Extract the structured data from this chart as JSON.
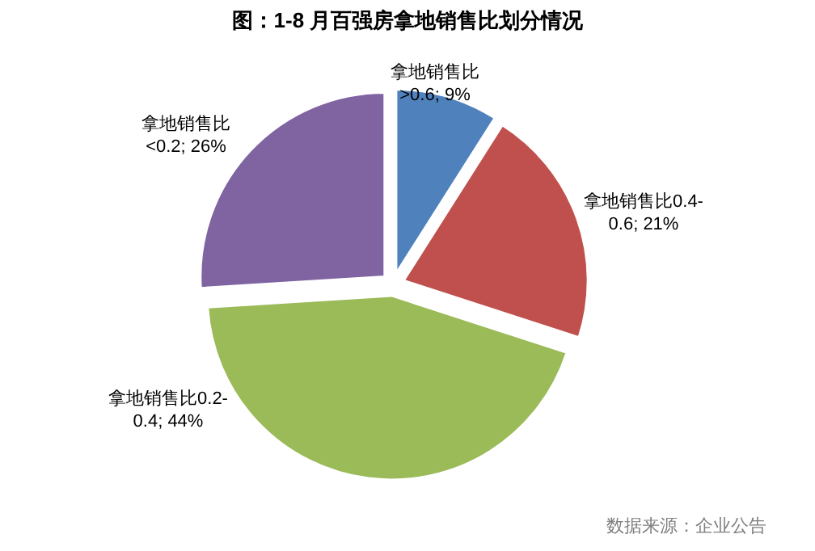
{
  "chart_data": {
    "type": "pie",
    "title": "图：1-8 月百强房拿地销售比划分情况",
    "categories": [
      "拿地销售比>0.6",
      "拿地销售比0.4-0.6",
      "拿地销售比0.2-0.4",
      "拿地销售比<0.2"
    ],
    "values": [
      9,
      21,
      44,
      26
    ],
    "colors": [
      "#4f81bd",
      "#c0504d",
      "#9bbb59",
      "#8064a2"
    ],
    "value_labels": [
      "; 9%",
      "; 21%",
      "; 44%",
      "; 26%"
    ],
    "annotations": [
      "数据来源：企业公告"
    ]
  }
}
